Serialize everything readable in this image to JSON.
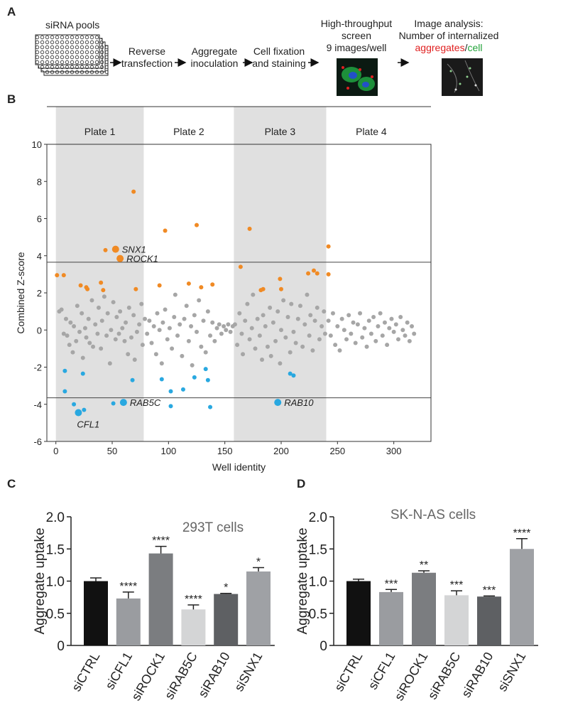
{
  "panel_a": {
    "label": "A",
    "plates": "siRNA pools",
    "steps": [
      {
        "lines": [
          "Reverse",
          "transfection"
        ]
      },
      {
        "lines": [
          "Aggregate",
          "inoculation"
        ]
      },
      {
        "lines": [
          "Cell fixation",
          "and staining"
        ]
      },
      {
        "lines": [
          "High-throughput",
          "screen",
          "9 images/well"
        ]
      }
    ],
    "analysis": {
      "lines": [
        "Image analysis:",
        "Number of internalized"
      ],
      "parts": [
        "aggregates",
        "/",
        "cell"
      ]
    }
  },
  "chart_data": [
    {
      "type": "scatter",
      "panel": "B",
      "ylabel": "Combined Z-score",
      "xlabel": "Well identity",
      "xlim": [
        -8,
        333
      ],
      "ylim": [
        -6,
        10
      ],
      "xticks": [
        0,
        50,
        100,
        150,
        200,
        250,
        300
      ],
      "yticks": [
        -6,
        -4,
        -2,
        0,
        2,
        4,
        6,
        8,
        10
      ],
      "bands": [
        {
          "label": "Plate 1",
          "range": [
            0,
            78
          ],
          "shaded": true
        },
        {
          "label": "Plate 2",
          "range": [
            78,
            158
          ],
          "shaded": false
        },
        {
          "label": "Plate 3",
          "range": [
            158,
            240
          ],
          "shaded": true
        },
        {
          "label": "Plate 4",
          "range": [
            240,
            320
          ],
          "shaded": false
        }
      ],
      "hlines": [
        3.65,
        -3.65
      ],
      "series": [
        {
          "color": "#a6a6a6",
          "x": [
            3,
            5,
            7,
            9,
            10,
            12,
            13,
            15,
            16,
            18,
            19,
            21,
            23,
            24,
            26,
            27,
            29,
            30,
            32,
            33,
            35,
            37,
            38,
            40,
            41,
            43,
            45,
            46,
            48,
            49,
            51,
            53,
            54,
            56,
            57,
            59,
            61,
            62,
            64,
            65,
            67,
            69,
            70,
            72,
            74,
            76,
            77,
            79,
            81,
            83,
            85,
            87,
            89,
            90,
            92,
            94,
            95,
            97,
            99,
            101,
            103,
            105,
            106,
            108,
            110,
            112,
            114,
            116,
            118,
            120,
            121,
            123,
            125,
            127,
            129,
            131,
            133,
            135,
            137,
            139,
            141,
            143,
            145,
            147,
            149,
            151,
            153,
            155,
            157,
            159,
            161,
            163,
            165,
            166,
            168,
            170,
            172,
            174,
            175,
            177,
            179,
            181,
            183,
            184,
            186,
            188,
            190,
            191,
            193,
            195,
            197,
            199,
            200,
            202,
            204,
            206,
            208,
            209,
            211,
            213,
            215,
            217,
            219,
            221,
            223,
            225,
            226,
            228,
            230,
            232,
            234,
            236,
            238,
            239,
            242,
            244,
            246,
            248,
            250,
            252,
            254,
            256,
            258,
            260,
            262,
            264,
            266,
            268,
            270,
            272,
            274,
            276,
            278,
            280,
            282,
            284,
            286,
            288,
            290,
            292,
            294,
            296,
            298,
            300,
            302,
            304,
            306,
            308,
            310,
            312,
            314,
            316,
            318
          ],
          "values": [
            1.0,
            1.1,
            -0.2,
            0.6,
            -0.3,
            -0.8,
            0.4,
            -1.2,
            0.2,
            -0.6,
            1.3,
            -0.1,
            0.9,
            -1.5,
            0.1,
            -0.4,
            0.6,
            -0.7,
            1.6,
            -0.9,
            0.3,
            -0.2,
            1.2,
            -1.0,
            0.5,
            1.8,
            -0.3,
            0.9,
            -1.8,
            0.0,
            1.5,
            -0.5,
            0.7,
            -0.2,
            1.0,
            0.1,
            -0.6,
            0.4,
            -1.3,
            1.2,
            -0.4,
            0.8,
            -1.6,
            -0.1,
            0.3,
            1.4,
            -0.8,
            0.6,
            -0.2,
            0.5,
            -0.7,
            0.2,
            -1.3,
            0.9,
            0.0,
            -1.8,
            0.4,
            1.1,
            -0.5,
            0.1,
            -1.0,
            0.7,
            1.9,
            -0.3,
            0.3,
            -1.4,
            0.6,
            1.3,
            -0.6,
            0.2,
            -1.9,
            0.8,
            -0.1,
            1.6,
            -0.9,
            0.5,
            -1.2,
            1.0,
            -0.3,
            0.4,
            -0.6,
            0.1,
            0.3,
            -0.2,
            0.2,
            0.0,
            0.3,
            -0.1,
            0.2,
            0.3,
            -0.8,
            0.9,
            -0.2,
            -1.3,
            0.5,
            1.4,
            -0.5,
            0.1,
            1.9,
            -1.0,
            0.6,
            -0.3,
            -1.6,
            0.8,
            0.2,
            -0.9,
            1.2,
            -1.4,
            0.4,
            -0.6,
            1.0,
            -1.8,
            0.0,
            1.6,
            -0.4,
            0.7,
            -1.2,
            1.4,
            -0.1,
            -0.7,
            0.6,
            1.3,
            -0.9,
            0.3,
            1.9,
            -0.3,
            0.8,
            -1.1,
            0.5,
            1.2,
            -0.5,
            0.2,
            1.0,
            -0.2,
            0.5,
            -0.3,
            0.9,
            -0.8,
            0.2,
            -1.1,
            0.6,
            0.0,
            -0.5,
            0.8,
            -0.2,
            0.4,
            -0.7,
            0.3,
            0.9,
            -0.4,
            0.1,
            -0.9,
            0.5,
            -0.2,
            0.7,
            -0.6,
            0.2,
            0.9,
            -0.3,
            0.4,
            -0.8,
            0.1,
            0.6,
            -0.1,
            0.3,
            -0.5,
            0.7,
            0.0,
            -0.3,
            0.4,
            -0.6,
            0.2,
            -0.2
          ]
        },
        {
          "color": "#f08a24",
          "x": [
            1,
            7,
            22,
            27,
            28,
            40,
            42,
            44,
            69,
            71,
            92,
            97,
            118,
            125,
            129,
            139,
            164,
            172,
            182,
            184,
            199,
            200,
            224,
            229,
            232,
            242,
            242
          ],
          "values": [
            2.95,
            2.95,
            2.4,
            2.3,
            2.2,
            2.55,
            2.15,
            4.3,
            7.45,
            2.2,
            2.4,
            5.35,
            2.5,
            5.65,
            2.3,
            2.45,
            3.4,
            5.45,
            2.15,
            2.2,
            2.75,
            2.2,
            3.05,
            3.2,
            3.05,
            3.0,
            4.5
          ]
        },
        {
          "color": "#29a8e0",
          "x": [
            8,
            8,
            24,
            16,
            25,
            51,
            68,
            94,
            102,
            102,
            113,
            123,
            133,
            135,
            137,
            208,
            211
          ],
          "values": [
            -2.2,
            -3.3,
            -2.35,
            -4.0,
            -4.3,
            -3.95,
            -2.7,
            -2.65,
            -3.3,
            -4.1,
            -3.2,
            -2.55,
            -2.1,
            -2.7,
            -4.15,
            -2.35,
            -2.45
          ]
        },
        {
          "color": "#f08a24",
          "emphasis": true,
          "x": [
            53,
            57
          ],
          "values": [
            4.35,
            3.85
          ],
          "labels": [
            "SNX1",
            "ROCK1"
          ]
        },
        {
          "color": "#29a8e0",
          "emphasis": true,
          "x": [
            60,
            20,
            197
          ],
          "values": [
            -3.9,
            -4.45,
            -3.9
          ],
          "labels": [
            "RAB5C",
            "CFL1",
            "RAB10"
          ]
        }
      ]
    },
    {
      "type": "bar",
      "panel": "C",
      "subtitle": "293T cells",
      "ylabel": "Aggregate uptake",
      "categories": [
        "siCTRL",
        "siCFL1",
        "siROCK1",
        "siRAB5C",
        "siRAB10",
        "siSNX1"
      ],
      "values": [
        1.0,
        0.73,
        1.43,
        0.56,
        0.8,
        1.15
      ],
      "errors": [
        0.05,
        0.1,
        0.11,
        0.07,
        0.01,
        0.06
      ],
      "significance": [
        null,
        "****",
        "****",
        "****",
        "*",
        "*"
      ],
      "colors": [
        "#111111",
        "#9a9ca0",
        "#7b7d80",
        "#d4d5d6",
        "#5e6063",
        "#9fa1a5"
      ],
      "ylim": [
        0,
        2
      ],
      "yticks": [
        0,
        0.5,
        {
          "value": 1,
          "label": "1.0"
        },
        1.5,
        {
          "value": 2,
          "label": "2.0"
        }
      ]
    },
    {
      "type": "bar",
      "panel": "D",
      "subtitle": "SK-N-AS cells",
      "ylabel": "Aggregate uptake",
      "categories": [
        "siCTRL",
        "siCFL1",
        "siROCK1",
        "siRAB5C",
        "siRAB10",
        "siSNX1"
      ],
      "values": [
        1.0,
        0.83,
        1.13,
        0.78,
        0.76,
        1.5
      ],
      "errors": [
        0.03,
        0.04,
        0.03,
        0.07,
        0.01,
        0.16
      ],
      "significance": [
        null,
        "***",
        "**",
        "***",
        "***",
        "****"
      ],
      "colors": [
        "#111111",
        "#9a9ca0",
        "#7b7d80",
        "#d4d5d6",
        "#5e6063",
        "#9fa1a5"
      ],
      "ylim": [
        0,
        2
      ],
      "yticks": [
        0,
        0.5,
        {
          "value": 1,
          "label": "1.0"
        },
        1.5,
        {
          "value": 2,
          "label": "2.0"
        }
      ]
    }
  ]
}
